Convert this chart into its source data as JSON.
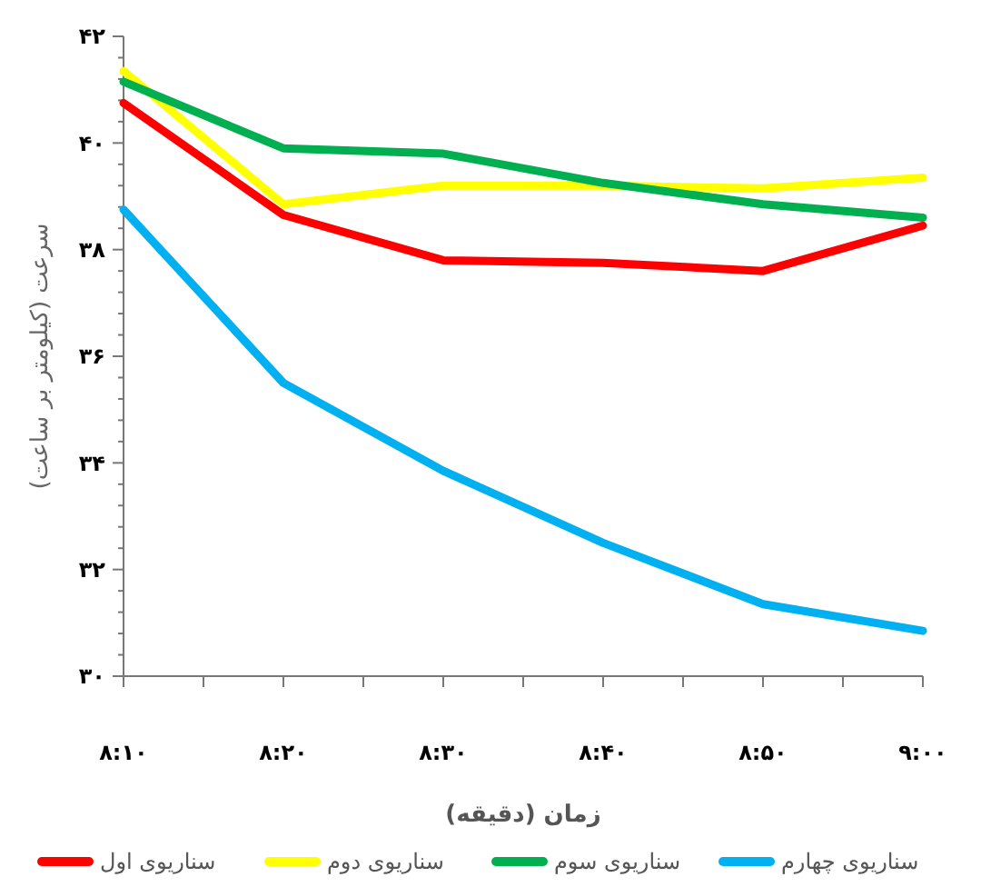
{
  "chart_data": {
    "type": "line",
    "ylabel": "سرعت (کیلومتر بر ساعت)",
    "xlabel": "زمان (دقیقه)",
    "categories": [
      "۸:۱۰",
      "۸:۲۰",
      "۸:۳۰",
      "۸:۴۰",
      "۸:۵۰",
      "۹:۰۰"
    ],
    "series": [
      {
        "name": "سناریوی اول",
        "color": "#ff0000",
        "values": [
          40.75,
          38.65,
          37.8,
          37.75,
          37.6,
          38.45
        ]
      },
      {
        "name": "سناریوی دوم",
        "color": "#ffff00",
        "values": [
          41.35,
          38.85,
          39.2,
          39.2,
          39.15,
          39.35
        ]
      },
      {
        "name": "سناریوی سوم",
        "color": "#00b050",
        "values": [
          41.15,
          39.9,
          39.8,
          39.25,
          38.85,
          38.6
        ]
      },
      {
        "name": "سناریوی چهارم",
        "color": "#00b0f0",
        "values": [
          38.75,
          35.5,
          33.85,
          32.5,
          31.35,
          30.85
        ]
      }
    ],
    "ylim": [
      30,
      42
    ],
    "yticks": [
      {
        "value": 30,
        "label": "۳۰"
      },
      {
        "value": 30.4,
        "label": null
      },
      {
        "value": 30.8,
        "label": null
      },
      {
        "value": 31.2,
        "label": null
      },
      {
        "value": 31.6,
        "label": null
      },
      {
        "value": 32,
        "label": "۳۲"
      },
      {
        "value": 32.4,
        "label": null
      },
      {
        "value": 32.8,
        "label": null
      },
      {
        "value": 33.2,
        "label": null
      },
      {
        "value": 33.6,
        "label": null
      },
      {
        "value": 34,
        "label": "۳۴"
      },
      {
        "value": 34.4,
        "label": null
      },
      {
        "value": 34.8,
        "label": null
      },
      {
        "value": 35.2,
        "label": null
      },
      {
        "value": 35.6,
        "label": null
      },
      {
        "value": 36,
        "label": "۳۶"
      },
      {
        "value": 36.4,
        "label": null
      },
      {
        "value": 36.8,
        "label": null
      },
      {
        "value": 37.2,
        "label": null
      },
      {
        "value": 37.6,
        "label": null
      },
      {
        "value": 38,
        "label": "۳۸"
      },
      {
        "value": 38.4,
        "label": null
      },
      {
        "value": 38.8,
        "label": null
      },
      {
        "value": 39.2,
        "label": null
      },
      {
        "value": 39.6,
        "label": null
      },
      {
        "value": 40,
        "label": "۴۰"
      },
      {
        "value": 40.4,
        "label": null
      },
      {
        "value": 40.8,
        "label": null
      },
      {
        "value": 41.2,
        "label": null
      },
      {
        "value": 41.6,
        "label": null
      },
      {
        "value": 42,
        "label": "۴۲"
      }
    ],
    "grid": false,
    "legend": "bottom",
    "marker": "none",
    "line_style": "solid"
  }
}
